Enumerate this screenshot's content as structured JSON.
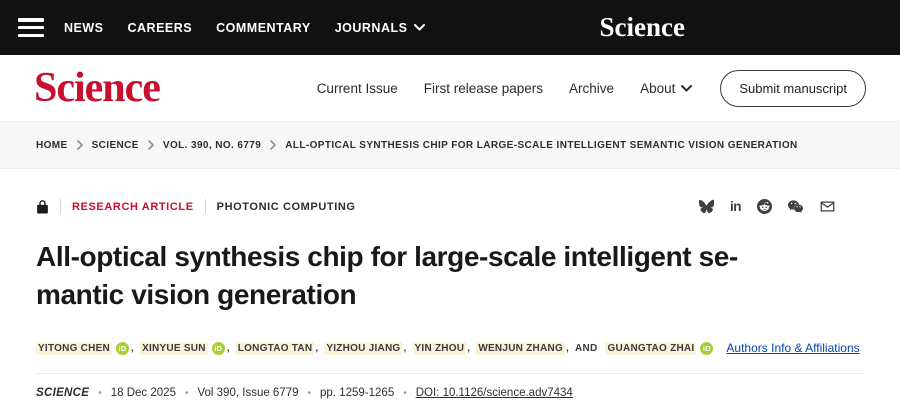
{
  "colors": {
    "brand_red": "#c8102e",
    "link_blue": "#0645ad",
    "orcid_green": "#a6ce39",
    "author_highlight": "#faf3da"
  },
  "topbar": {
    "nav": [
      "NEWS",
      "CAREERS",
      "COMMENTARY",
      "JOURNALS"
    ],
    "logo": "Science"
  },
  "header": {
    "logo": "Science",
    "nav": [
      "Current Issue",
      "First release papers",
      "Archive",
      "About"
    ],
    "submit_label": "Submit manuscript"
  },
  "breadcrumb": {
    "items": [
      "HOME",
      "SCIENCE",
      "VOL. 390, NO. 6779",
      "ALL-OPTICAL SYNTHESIS CHIP FOR LARGE-SCALE INTELLIGENT SEMANTIC VISION GENERATION"
    ]
  },
  "article": {
    "access_icon": "lock",
    "type_label": "RESEARCH ARTICLE",
    "section_label": "PHOTONIC COMPUTING",
    "share_icons": [
      "bluesky",
      "linkedin",
      "reddit",
      "wechat",
      "email"
    ],
    "linkedin_glyph": "in",
    "title": "All-optical synthesis chip for large-scale intelligent semantic vision generation",
    "title_lines": [
      "All-optical synthesis chip for large-scale intelligent se-",
      "mantic vision generation"
    ],
    "authors": [
      {
        "name": "YITONG CHEN",
        "orcid": true
      },
      {
        "name": "XINYUE SUN",
        "orcid": true
      },
      {
        "name": "LONGTAO TAN",
        "orcid": false
      },
      {
        "name": "YIZHOU JIANG",
        "orcid": false
      },
      {
        "name": "YIN ZHOU",
        "orcid": false
      },
      {
        "name": "WENJUN ZHANG",
        "orcid": false
      },
      {
        "name": "GUANGTAO ZHAI",
        "orcid": true
      }
    ],
    "authors_conjunction": "AND",
    "orcid_glyph": "iD",
    "authors_link": "Authors Info & Affiliations",
    "meta": {
      "journal": "SCIENCE",
      "date": "18 Dec 2025",
      "issue": "Vol 390, Issue 6779",
      "pages": "pp. 1259-1265",
      "doi": "DOI: 10.1126/science.adv7434"
    }
  }
}
